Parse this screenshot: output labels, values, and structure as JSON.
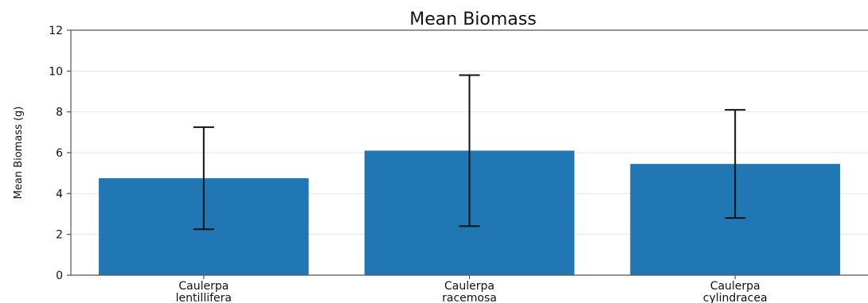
{
  "chart_data": {
    "type": "bar",
    "title": "Mean Biomass",
    "xlabel": "",
    "ylabel": "Mean Biomass (g)",
    "ylim": [
      0,
      12
    ],
    "yticks": [
      0,
      2,
      4,
      6,
      8,
      10,
      12
    ],
    "categories": [
      [
        "Caulerpa",
        "lentillifera"
      ],
      [
        "Caulerpa",
        "racemosa"
      ],
      [
        "Caulerpa",
        "cylindracea"
      ]
    ],
    "values": [
      4.75,
      6.1,
      5.45
    ],
    "errors": [
      2.5,
      3.7,
      2.65
    ],
    "grid": "y",
    "colors": {
      "bar": "#2077b4",
      "error": "#111111",
      "grid": "#e6e6e6",
      "axis": "#555555"
    }
  }
}
